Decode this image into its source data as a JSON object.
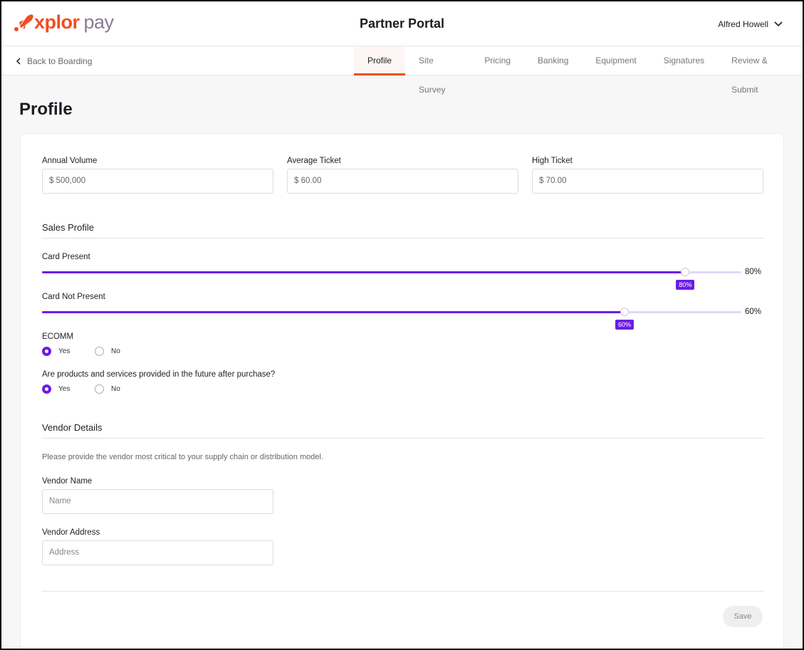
{
  "header": {
    "logo_brand": "xplor",
    "logo_product": "pay",
    "title": "Partner Portal",
    "user": "Alfred Howell"
  },
  "nav": {
    "back": "Back to Boarding",
    "tabs": [
      "Profile",
      "Site Survey",
      "Pricing",
      "Banking",
      "Equipment",
      "Signatures",
      "Review & Submit"
    ],
    "active": "Profile"
  },
  "page": {
    "title": "Profile"
  },
  "volume": {
    "annual_label": "Annual Volume",
    "annual_value": "$  500,000",
    "avg_label": "Average Ticket",
    "avg_value": "$  60.00",
    "high_label": "High Ticket",
    "high_value": "$  70.00"
  },
  "sales": {
    "title": "Sales Profile",
    "card_present_label": "Card Present",
    "card_present_value": "80%",
    "card_present_pct": 80,
    "cnp_label": "Card Not Present",
    "cnp_value": "60%",
    "cnp_pct": 60,
    "ecomm_label": "ECOMM",
    "ecomm_selected": "Yes",
    "future_label": "Are products and services provided in the future after purchase?",
    "future_selected": "Yes",
    "yes": "Yes",
    "no": "No"
  },
  "vendor": {
    "title": "Vendor Details",
    "desc": "Please provide the vendor most critical to your supply chain or distribution model.",
    "name_label": "Vendor Name",
    "name_placeholder": "Name",
    "address_label": "Vendor Address",
    "address_placeholder": "Address"
  },
  "actions": {
    "save": "Save"
  },
  "colors": {
    "accent": "#6a1de6",
    "brand": "#f04e23"
  }
}
